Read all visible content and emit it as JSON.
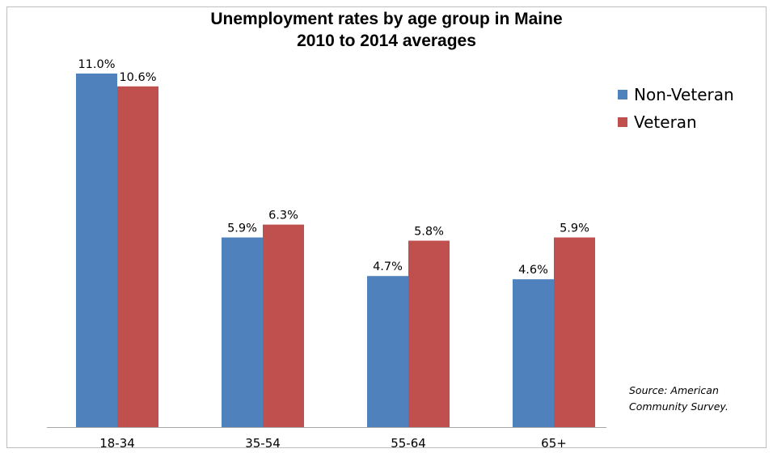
{
  "chart_data": {
    "type": "bar",
    "title_lines": [
      "Unemployment rates by age group in Maine",
      "2010 to 2014 averages"
    ],
    "categories": [
      "18-34",
      "35-54",
      "55-64",
      "65+"
    ],
    "series": [
      {
        "name": "Non-Veteran",
        "color": "#4F81BD",
        "values": [
          11.0,
          5.9,
          4.7,
          4.6
        ],
        "labels": [
          "11.0%",
          "5.9%",
          "4.7%",
          "4.6%"
        ]
      },
      {
        "name": "Veteran",
        "color": "#C0504D",
        "values": [
          10.6,
          6.3,
          5.8,
          5.9
        ],
        "labels": [
          "10.6%",
          "6.3%",
          "5.8%",
          "5.9%"
        ]
      }
    ],
    "ylim": [
      0,
      11.5
    ],
    "grid": false,
    "legend_position": "right",
    "source_lines": [
      "Source: American",
      "Community Survey."
    ]
  }
}
